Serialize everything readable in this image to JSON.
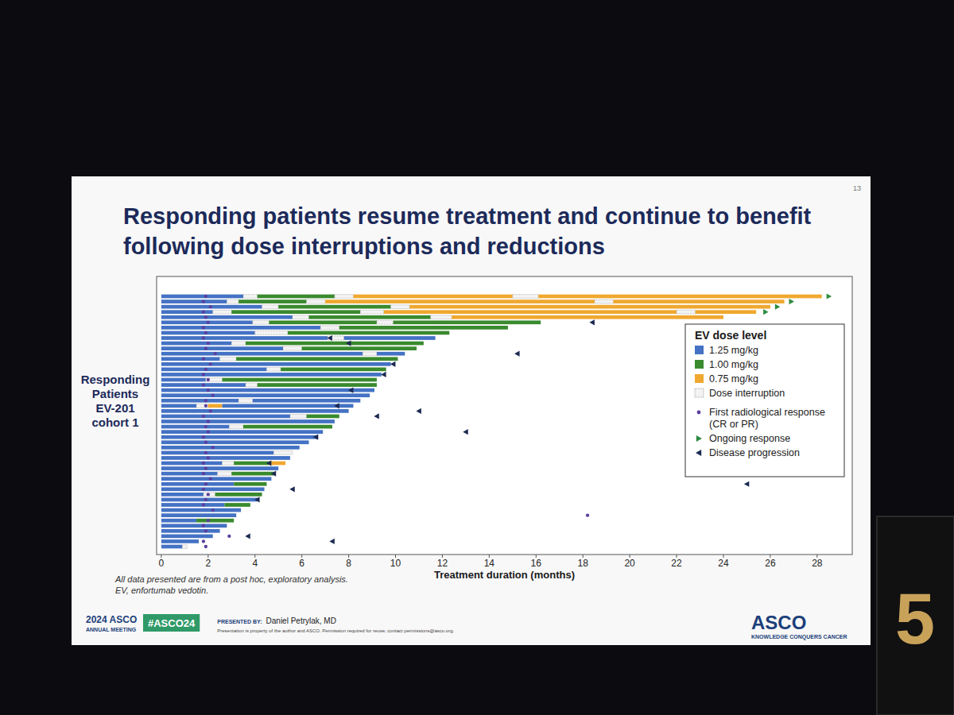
{
  "chart_data": {
    "type": "swimmer",
    "title": "Responding patients resume treatment and continue to benefit following dose interruptions and reductions",
    "ylabel": "Responding Patients EV-201 cohort 1",
    "xlabel": "Treatment duration (months)",
    "xlim": [
      -0.2,
      29.5
    ],
    "xticks": [
      0,
      2,
      4,
      6,
      8,
      10,
      12,
      14,
      16,
      18,
      20,
      22,
      24,
      26,
      28
    ],
    "legend": "right",
    "legend_title": "EV dose level",
    "dose_levels": [
      {
        "value": 1.25,
        "label": "1.25 mg/kg",
        "color": "#4472c4"
      },
      {
        "value": 1.0,
        "label": "1.00 mg/kg",
        "color": "#3a8a2e"
      },
      {
        "value": 0.75,
        "label": "0.75 mg/kg",
        "color": "#f0a830"
      }
    ],
    "interruption": {
      "label": "Dose interruption",
      "color": "#f3f3f3"
    },
    "markers": {
      "response": {
        "label": "First radiological response (CR or PR)",
        "color": "#5b3f9e",
        "marker": "circle"
      },
      "ongoing": {
        "label": "Ongoing response",
        "color": "#2e8b3e",
        "marker": "triangle-right"
      },
      "progression": {
        "label": "Disease progression",
        "color": "#1b2a52",
        "marker": "triangle-left"
      }
    },
    "patients": [
      {
        "segments": [
          [
            0,
            3.5,
            1.25
          ],
          [
            3.5,
            4.1,
            null
          ],
          [
            4.1,
            7.4,
            1.0
          ],
          [
            7.4,
            8.2,
            null
          ],
          [
            8.2,
            15.0,
            0.75
          ],
          [
            15.0,
            16.1,
            null
          ],
          [
            16.1,
            28.2,
            0.75
          ]
        ],
        "response": 1.9,
        "ongoing": 28.5
      },
      {
        "segments": [
          [
            0,
            2.8,
            1.25
          ],
          [
            2.8,
            3.3,
            null
          ],
          [
            3.3,
            6.2,
            1.0
          ],
          [
            6.2,
            7.0,
            null
          ],
          [
            7.0,
            18.5,
            0.75
          ],
          [
            18.5,
            19.3,
            null
          ],
          [
            19.3,
            26.6,
            0.75
          ]
        ],
        "response": 1.8,
        "ongoing": 26.9
      },
      {
        "segments": [
          [
            0,
            4.3,
            1.25
          ],
          [
            4.3,
            5.0,
            null
          ],
          [
            5.0,
            9.8,
            1.0
          ],
          [
            9.8,
            10.6,
            null
          ],
          [
            10.6,
            26.0,
            0.75
          ]
        ],
        "response": 2.1,
        "ongoing": 26.3
      },
      {
        "segments": [
          [
            0,
            2.2,
            1.25
          ],
          [
            2.2,
            3.0,
            null
          ],
          [
            3.0,
            8.5,
            1.0
          ],
          [
            8.5,
            9.5,
            null
          ],
          [
            9.5,
            22.0,
            0.75
          ],
          [
            22.0,
            22.8,
            null
          ],
          [
            22.8,
            25.4,
            0.75
          ]
        ],
        "response": 1.8,
        "ongoing": 25.8
      },
      {
        "segments": [
          [
            0,
            5.6,
            1.25
          ],
          [
            5.6,
            6.3,
            null
          ],
          [
            6.3,
            11.5,
            1.0
          ],
          [
            11.5,
            12.4,
            null
          ],
          [
            12.4,
            24.0,
            0.75
          ]
        ],
        "response": 1.9
      },
      {
        "segments": [
          [
            0,
            3.9,
            1.25
          ],
          [
            3.9,
            4.6,
            null
          ],
          [
            4.6,
            9.2,
            1.0
          ],
          [
            9.2,
            9.9,
            null
          ],
          [
            9.9,
            16.2,
            1.0
          ]
        ],
        "response": 2.0,
        "progression": 18.4
      },
      {
        "segments": [
          [
            0,
            6.8,
            1.25
          ],
          [
            6.8,
            7.6,
            null
          ],
          [
            7.6,
            14.8,
            1.0
          ]
        ],
        "response": 1.8
      },
      {
        "segments": [
          [
            0,
            4.0,
            1.25
          ],
          [
            4.0,
            5.4,
            null
          ],
          [
            5.4,
            12.3,
            1.0
          ]
        ],
        "response": 1.9
      },
      {
        "segments": [
          [
            0,
            7.1,
            1.25
          ],
          [
            7.1,
            7.8,
            null
          ],
          [
            7.8,
            11.7,
            1.25
          ]
        ],
        "response": 1.8,
        "progression": 7.2
      },
      {
        "segments": [
          [
            0,
            3.0,
            1.25
          ],
          [
            3.0,
            3.6,
            null
          ],
          [
            3.6,
            11.2,
            1.0
          ]
        ],
        "response": 2.0,
        "progression": 8.0
      },
      {
        "segments": [
          [
            0,
            5.2,
            1.25
          ],
          [
            5.2,
            6.0,
            null
          ],
          [
            6.0,
            10.9,
            1.0
          ]
        ],
        "response": 1.9
      },
      {
        "segments": [
          [
            0,
            8.6,
            1.25
          ],
          [
            8.6,
            9.2,
            null
          ],
          [
            9.2,
            10.4,
            1.25
          ]
        ],
        "response": 2.3,
        "progression": 15.2
      },
      {
        "segments": [
          [
            0,
            2.5,
            1.25
          ],
          [
            2.5,
            3.2,
            null
          ],
          [
            3.2,
            10.1,
            1.0
          ]
        ],
        "response": 1.8
      },
      {
        "segments": [
          [
            0,
            9.8,
            1.25
          ]
        ],
        "response": 2.1,
        "progression": 9.9
      },
      {
        "segments": [
          [
            0,
            4.5,
            1.25
          ],
          [
            4.5,
            5.1,
            null
          ],
          [
            5.1,
            9.6,
            1.0
          ]
        ],
        "response": 1.9
      },
      {
        "segments": [
          [
            0,
            9.4,
            1.25
          ]
        ],
        "response": 1.8,
        "progression": 9.5
      },
      {
        "segments": [
          [
            0,
            1.9,
            1.25
          ],
          [
            1.9,
            2.6,
            null
          ],
          [
            2.6,
            9.2,
            1.0
          ]
        ],
        "response": 2.0
      },
      {
        "segments": [
          [
            0,
            3.6,
            1.25
          ],
          [
            3.6,
            4.1,
            null
          ],
          [
            4.1,
            9.2,
            1.0
          ]
        ],
        "response": 1.8
      },
      {
        "segments": [
          [
            0,
            9.1,
            1.25
          ]
        ],
        "response": 2.0,
        "progression": 8.1
      },
      {
        "segments": [
          [
            0,
            8.9,
            1.25
          ]
        ],
        "response": 2.2
      },
      {
        "segments": [
          [
            0,
            3.3,
            1.25
          ],
          [
            3.3,
            3.9,
            null
          ],
          [
            3.9,
            8.5,
            1.25
          ]
        ],
        "response": 1.9
      },
      {
        "segments": [
          [
            0,
            1.5,
            1.25
          ],
          [
            1.5,
            2.0,
            null
          ],
          [
            2.0,
            2.6,
            0.75
          ],
          [
            2.6,
            8.2,
            1.25
          ]
        ],
        "response": 1.9,
        "progression": 7.5
      },
      {
        "segments": [
          [
            0,
            8.0,
            1.25
          ]
        ],
        "response": 2.1,
        "progression": 11.0
      },
      {
        "segments": [
          [
            0,
            5.5,
            1.25
          ],
          [
            5.5,
            6.2,
            null
          ],
          [
            6.2,
            7.6,
            1.0
          ]
        ],
        "response": 1.8,
        "progression": 9.2
      },
      {
        "segments": [
          [
            0,
            7.4,
            1.25
          ]
        ],
        "response": 2.0
      },
      {
        "segments": [
          [
            0,
            2.9,
            1.25
          ],
          [
            2.9,
            3.5,
            null
          ],
          [
            3.5,
            7.3,
            1.0
          ]
        ],
        "response": 1.9
      },
      {
        "segments": [
          [
            0,
            6.9,
            1.25
          ]
        ],
        "response": 2.0,
        "progression": 13.0
      },
      {
        "segments": [
          [
            0,
            6.7,
            1.25
          ]
        ],
        "response": 1.8,
        "progression": 6.6
      },
      {
        "segments": [
          [
            0,
            6.3,
            1.25
          ]
        ],
        "response": 1.9
      },
      {
        "segments": [
          [
            0,
            5.9,
            1.25
          ]
        ],
        "response": 2.2
      },
      {
        "segments": [
          [
            0,
            4.8,
            1.25
          ],
          [
            4.8,
            5.6,
            null
          ]
        ],
        "response": 1.9
      },
      {
        "segments": [
          [
            0,
            5.5,
            1.25
          ]
        ],
        "response": 2.0
      },
      {
        "segments": [
          [
            0,
            2.6,
            1.25
          ],
          [
            2.6,
            3.1,
            null
          ],
          [
            3.1,
            4.6,
            1.0
          ],
          [
            4.6,
            5.3,
            0.75
          ]
        ],
        "response": 1.8,
        "progression": 4.6
      },
      {
        "segments": [
          [
            0,
            5.0,
            1.25
          ]
        ],
        "response": 1.9
      },
      {
        "segments": [
          [
            0,
            2.4,
            1.25
          ],
          [
            2.4,
            3.0,
            null
          ],
          [
            3.0,
            4.8,
            1.0
          ]
        ],
        "response": 1.8,
        "progression": 4.8
      },
      {
        "segments": [
          [
            0,
            4.7,
            1.25
          ]
        ],
        "response": 2.1
      },
      {
        "segments": [
          [
            0,
            3.1,
            1.25
          ],
          [
            3.1,
            4.5,
            1.0
          ]
        ],
        "response": 1.9,
        "progression": 25.0
      },
      {
        "segments": [
          [
            0,
            4.4,
            1.25
          ]
        ],
        "response": 1.8,
        "progression": 5.6
      },
      {
        "segments": [
          [
            0,
            1.8,
            1.25
          ],
          [
            1.8,
            2.3,
            null
          ],
          [
            2.3,
            4.3,
            1.0
          ]
        ],
        "response": 2.0
      },
      {
        "segments": [
          [
            0,
            4.1,
            1.25
          ]
        ],
        "response": 1.9,
        "progression": 4.1
      },
      {
        "segments": [
          [
            0,
            2.7,
            1.25
          ],
          [
            2.7,
            3.8,
            1.0
          ]
        ],
        "response": 1.8
      },
      {
        "segments": [
          [
            0,
            3.4,
            1.25
          ]
        ],
        "response": 2.2
      },
      {
        "segments": [
          [
            0,
            3.2,
            1.25
          ]
        ],
        "response": 18.2
      },
      {
        "segments": [
          [
            0,
            1.5,
            1.25
          ],
          [
            1.5,
            3.1,
            1.0
          ]
        ],
        "response": 2.0
      },
      {
        "segments": [
          [
            0,
            2.8,
            1.25
          ]
        ],
        "response": 1.8
      },
      {
        "segments": [
          [
            0,
            2.5,
            1.25
          ]
        ],
        "response": 1.9
      },
      {
        "segments": [
          [
            0,
            2.2,
            1.25
          ]
        ],
        "response": 2.9,
        "progression": 3.7
      },
      {
        "segments": [
          [
            0,
            1.6,
            1.25
          ]
        ],
        "response": 1.8,
        "progression": 7.3
      },
      {
        "segments": [
          [
            0,
            0.9,
            1.25
          ],
          [
            0.9,
            1.1,
            null
          ]
        ],
        "response": 1.9
      }
    ]
  },
  "slide": {
    "page": "13",
    "footnotes": [
      "All data presented are from a post hoc, exploratory analysis.",
      "EV, enfortumab vedotin."
    ],
    "meeting": "2024 ASCO",
    "meeting_sub": "ANNUAL MEETING",
    "hashtag": "#ASCO24",
    "presented_by": "PRESENTED BY:",
    "presenter": "Daniel Petrylak, MD",
    "permission": "Presentation is property of the author and ASCO. Permission required for reuse; contact permissions@asco.org.",
    "logo": "ASCO",
    "tagline": "KNOWLEDGE CONQUERS CANCER",
    "timer": "5"
  }
}
